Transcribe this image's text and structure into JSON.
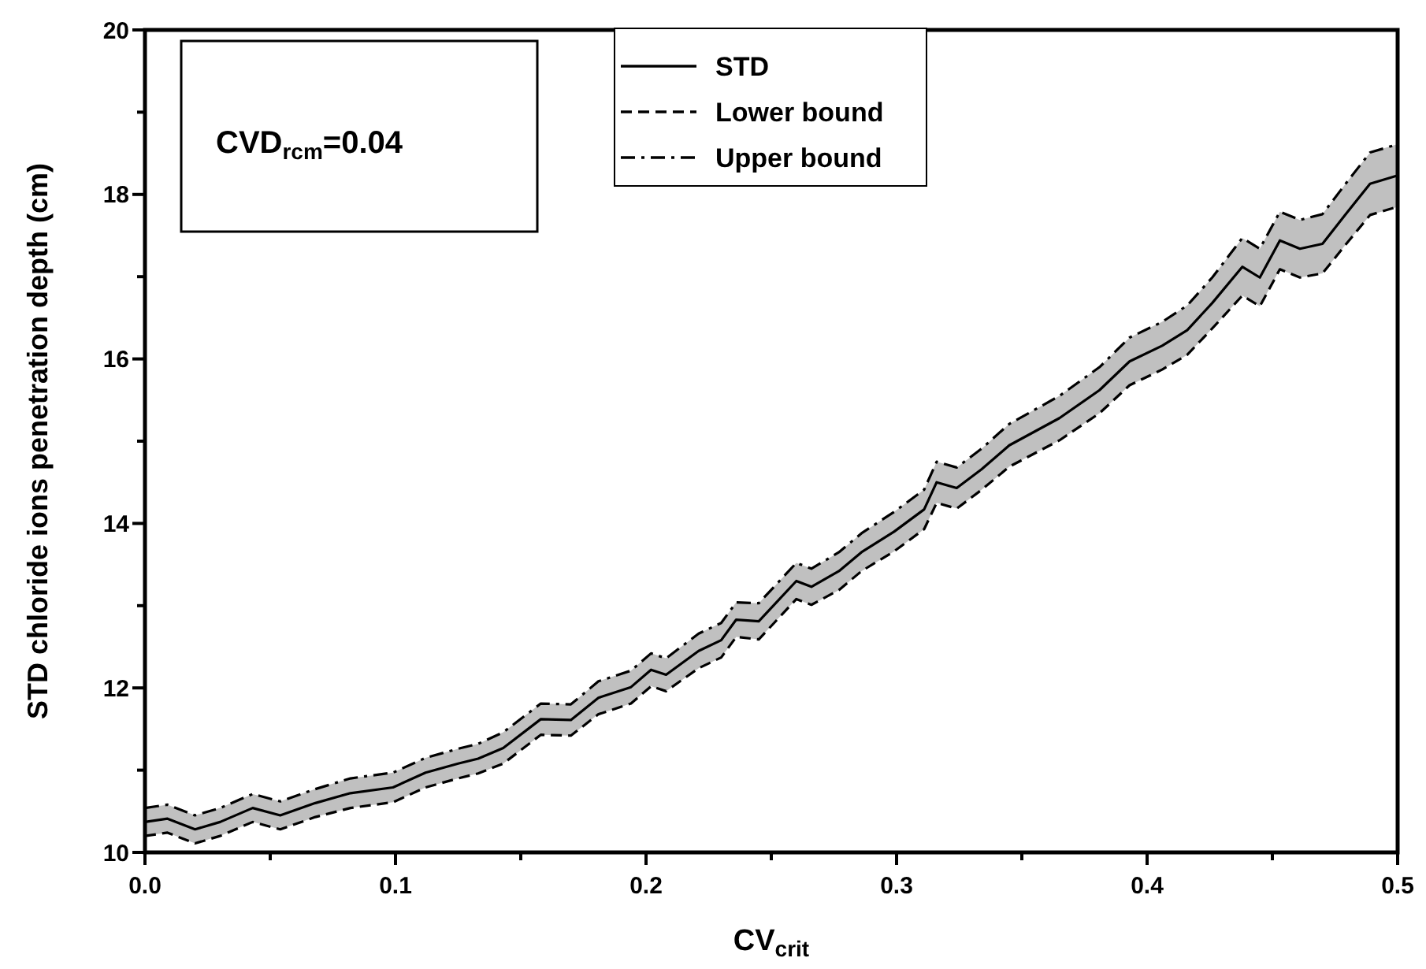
{
  "chart_data": {
    "type": "line",
    "xlabel": "CV$_{crit}$",
    "ylabel": "STD chloride ions penetration depth (cm)",
    "annotations": [
      "CVD$_{rcm}$=0.04"
    ],
    "x": [
      0,
      0.009,
      0.02,
      0.03,
      0.043,
      0.054,
      0.068,
      0.082,
      0.099,
      0.112,
      0.125,
      0.133,
      0.143,
      0.158,
      0.17,
      0.181,
      0.194,
      0.202,
      0.208,
      0.221,
      0.23,
      0.236,
      0.245,
      0.26,
      0.266,
      0.277,
      0.286,
      0.299,
      0.311,
      0.316,
      0.324,
      0.334,
      0.345,
      0.365,
      0.381,
      0.393,
      0.406,
      0.416,
      0.426,
      0.438,
      0.445,
      0.453,
      0.461,
      0.47,
      0.479,
      0.489,
      0.5
    ],
    "series": [
      {
        "name": "STD",
        "color": "#000000",
        "line_style": "solid",
        "values": [
          10.37,
          10.41,
          10.28,
          10.37,
          10.54,
          10.45,
          10.6,
          10.72,
          10.79,
          10.97,
          11.08,
          11.14,
          11.27,
          11.62,
          11.61,
          11.88,
          12.01,
          12.22,
          12.16,
          12.45,
          12.58,
          12.83,
          12.81,
          13.3,
          13.23,
          13.42,
          13.65,
          13.9,
          14.17,
          14.5,
          14.43,
          14.66,
          14.95,
          15.28,
          15.62,
          15.97,
          16.16,
          16.35,
          16.68,
          17.12,
          16.99,
          17.44,
          17.34,
          17.4,
          17.75,
          18.13,
          18.23
        ],
        "lower": [
          10.2,
          10.24,
          10.11,
          10.2,
          10.37,
          10.28,
          10.43,
          10.54,
          10.61,
          10.79,
          10.9,
          10.96,
          11.08,
          11.43,
          11.42,
          11.68,
          11.81,
          12.02,
          11.96,
          12.24,
          12.37,
          12.62,
          12.59,
          13.08,
          13.01,
          13.19,
          13.42,
          13.66,
          13.93,
          14.25,
          14.18,
          14.41,
          14.69,
          15.01,
          15.34,
          15.68,
          15.87,
          16.05,
          16.37,
          16.77,
          16.64,
          17.09,
          16.99,
          17.04,
          17.38,
          17.75,
          17.85
        ],
        "upper": [
          10.54,
          10.58,
          10.45,
          10.54,
          10.71,
          10.62,
          10.77,
          10.9,
          10.97,
          11.15,
          11.26,
          11.32,
          11.46,
          11.81,
          11.8,
          12.08,
          12.21,
          12.42,
          12.36,
          12.66,
          12.79,
          13.04,
          13.03,
          13.52,
          13.45,
          13.65,
          13.88,
          14.14,
          14.41,
          14.75,
          14.68,
          14.91,
          15.21,
          15.55,
          15.9,
          16.26,
          16.45,
          16.65,
          16.99,
          17.47,
          17.34,
          17.79,
          17.69,
          17.76,
          18.12,
          18.51,
          18.61
        ]
      },
      {
        "name": "Lower bound",
        "color": "#000000",
        "line_style": "dashed",
        "values": [
          10.2,
          10.24,
          10.11,
          10.2,
          10.37,
          10.28,
          10.43,
          10.54,
          10.61,
          10.79,
          10.9,
          10.96,
          11.08,
          11.43,
          11.42,
          11.68,
          11.81,
          12.02,
          11.96,
          12.24,
          12.37,
          12.62,
          12.59,
          13.08,
          13.01,
          13.19,
          13.42,
          13.66,
          13.93,
          14.25,
          14.18,
          14.41,
          14.69,
          15.01,
          15.34,
          15.68,
          15.87,
          16.05,
          16.37,
          16.77,
          16.64,
          17.09,
          16.99,
          17.04,
          17.38,
          17.75,
          17.85
        ]
      },
      {
        "name": "Upper bound",
        "color": "#000000",
        "line_style": "dashdot",
        "values": [
          10.54,
          10.58,
          10.45,
          10.54,
          10.71,
          10.62,
          10.77,
          10.9,
          10.97,
          11.15,
          11.26,
          11.32,
          11.46,
          11.81,
          11.8,
          12.08,
          12.21,
          12.42,
          12.36,
          12.66,
          12.79,
          13.04,
          13.03,
          13.52,
          13.45,
          13.65,
          13.88,
          14.14,
          14.41,
          14.75,
          14.68,
          14.91,
          15.21,
          15.55,
          15.9,
          16.26,
          16.45,
          16.65,
          16.99,
          17.47,
          17.34,
          17.79,
          17.69,
          17.76,
          18.12,
          18.51,
          18.61
        ]
      }
    ],
    "xlim": [
      0,
      0.5
    ],
    "xticks": [
      {
        "value": 0,
        "label": "0.0"
      },
      {
        "value": 0.05,
        "label": null
      },
      0.1,
      {
        "value": 0.15,
        "label": null
      },
      0.2,
      {
        "value": 0.25,
        "label": null
      },
      0.3,
      {
        "value": 0.35,
        "label": null
      },
      0.4,
      {
        "value": 0.45,
        "label": null
      },
      0.5
    ],
    "ylim": [
      10,
      20
    ],
    "yticks": [
      10,
      {
        "value": 11,
        "label": null
      },
      12,
      {
        "value": 13,
        "label": null
      },
      14,
      {
        "value": 15,
        "label": null
      },
      16,
      {
        "value": 17,
        "label": null
      },
      18,
      {
        "value": 19,
        "label": null
      },
      20
    ],
    "grid": false,
    "legend": "top",
    "marker": "none"
  }
}
